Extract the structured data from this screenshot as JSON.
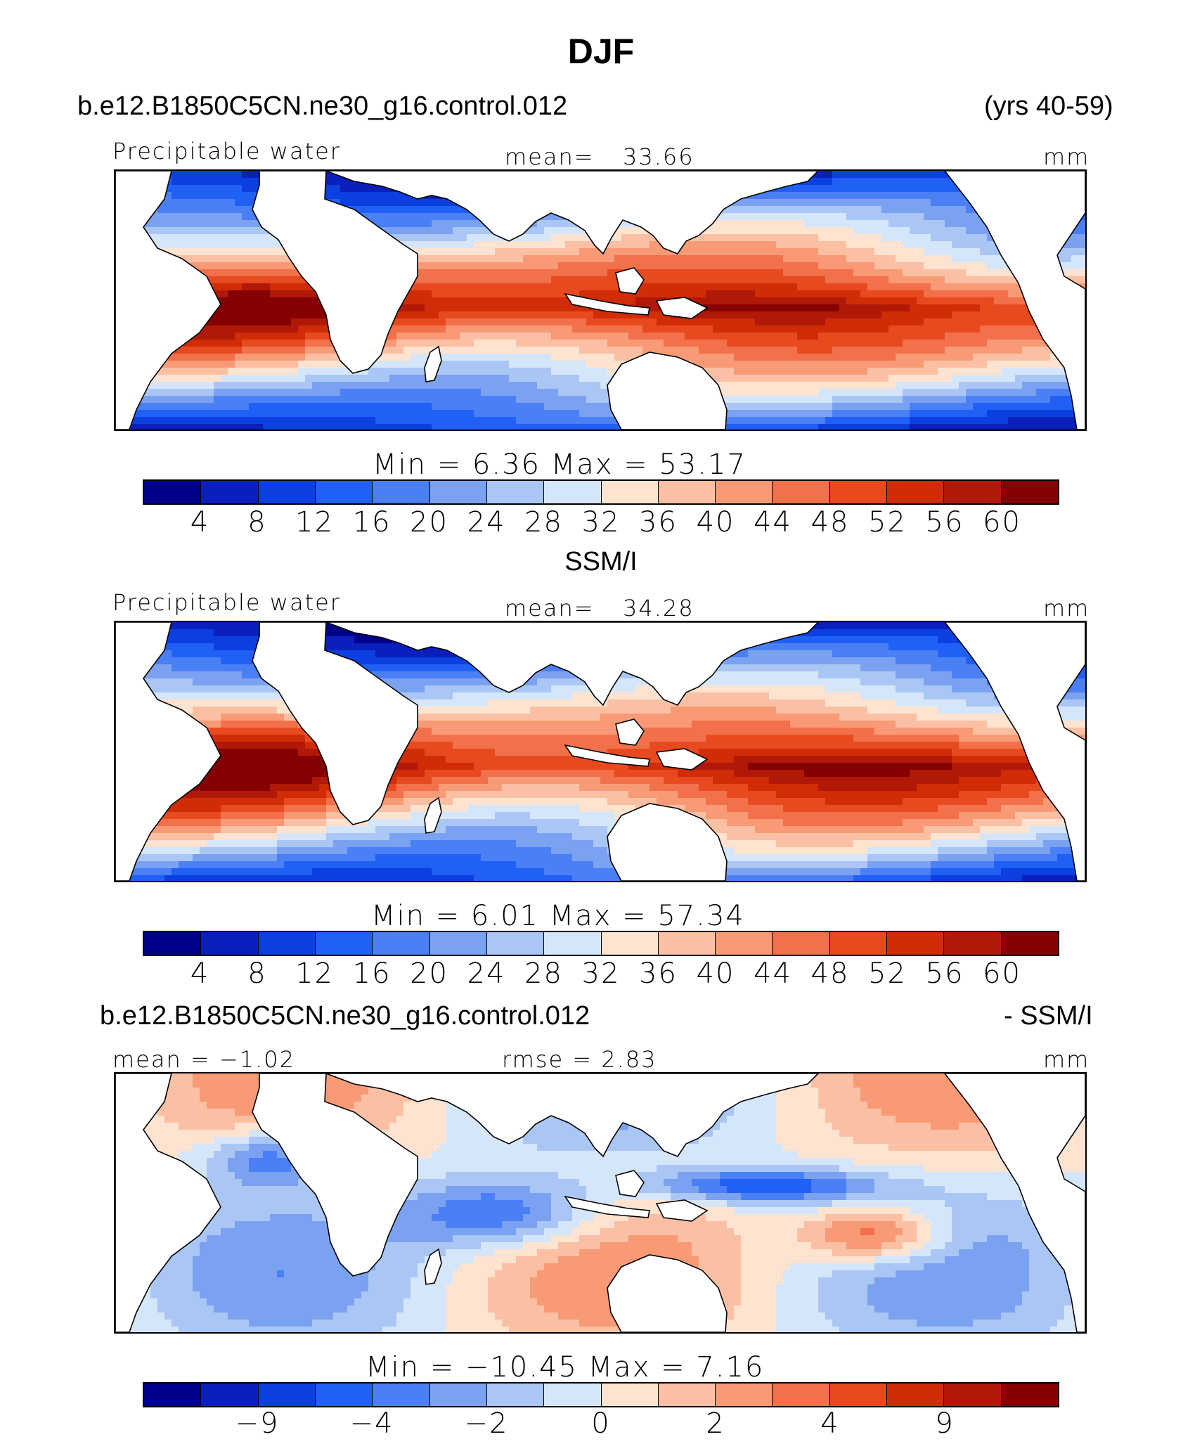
{
  "title": "DJF",
  "case_label": "b.e12.B1850C5CN.ne30_g16.control.012",
  "years_label": "(yrs 40-59)",
  "panels": [
    {
      "variable": "Precipitable water",
      "stat_label": "mean=",
      "stat_value": "33.66",
      "units": "mm",
      "minmax_text": "Min  =     6.36  Max  =    53.17",
      "colorbar_ticks": [
        "4",
        "8",
        "12",
        "16",
        "20",
        "24",
        "28",
        "32",
        "36",
        "40",
        "44",
        "48",
        "52",
        "56",
        "60"
      ]
    },
    {
      "panel_title": "SSM/I",
      "variable": "Precipitable water",
      "stat_label": "mean=",
      "stat_value": "34.28",
      "units": "mm",
      "minmax_text": "Min  =     6.01  Max  =    57.34",
      "colorbar_ticks": [
        "4",
        "8",
        "12",
        "16",
        "20",
        "24",
        "28",
        "32",
        "36",
        "40",
        "44",
        "48",
        "52",
        "56",
        "60"
      ]
    },
    {
      "case_label": "b.e12.B1850C5CN.ne30_g16.control.012",
      "minus_label": "- SSM/I",
      "mean_text": "mean  =   −1.02",
      "rmse_text": "rmse  =     2.83",
      "units": "mm",
      "minmax_text": "Min  =  −10.45  Max  =     7.16",
      "colorbar_ticks": [
        "−9",
        "−4",
        "−2",
        "0",
        "2",
        "4",
        "9"
      ]
    }
  ],
  "colors": {
    "palette": [
      "#00008b",
      "#0a1fbb",
      "#0b3fe0",
      "#2060f5",
      "#4a7ff5",
      "#7aa2f0",
      "#aac6f5",
      "#d5e6fa",
      "#fde3d0",
      "#fbc0a3",
      "#f89a76",
      "#f2704a",
      "#e84a20",
      "#d02c08",
      "#b01808",
      "#850000"
    ],
    "land": "#ffffff",
    "coast": "#000000"
  }
}
